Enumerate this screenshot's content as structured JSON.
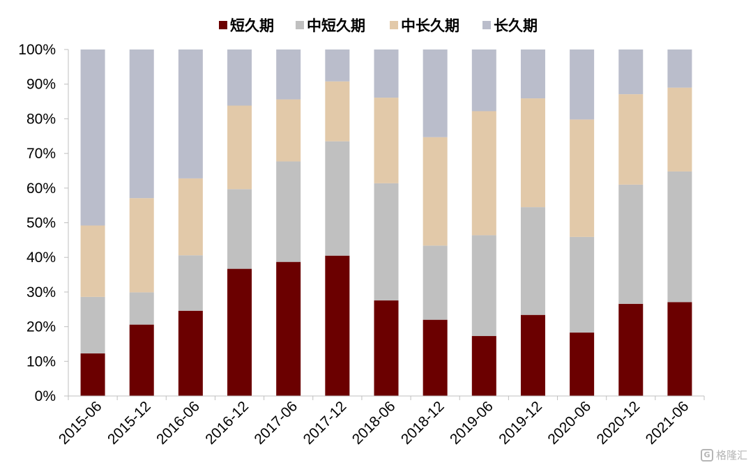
{
  "chart_data": {
    "type": "bar",
    "stacked": true,
    "percent": true,
    "categories": [
      "2015-06",
      "2015-12",
      "2016-06",
      "2016-12",
      "2017-06",
      "2017-12",
      "2018-06",
      "2018-12",
      "2019-06",
      "2019-12",
      "2020-06",
      "2020-12",
      "2021-06"
    ],
    "series": [
      {
        "name": "短久期",
        "color": "#6b0000",
        "values": [
          12.3,
          20.6,
          24.6,
          36.7,
          38.7,
          40.5,
          27.6,
          22.0,
          17.3,
          23.4,
          18.3,
          26.6,
          27.1
        ]
      },
      {
        "name": "中短久期",
        "color": "#c0c0c0",
        "values": [
          16.3,
          9.3,
          16.0,
          23.0,
          29.0,
          33.0,
          33.8,
          21.4,
          29.1,
          31.1,
          27.6,
          34.4,
          37.7
        ]
      },
      {
        "name": "中长久期",
        "color": "#e2c9a9",
        "values": [
          20.6,
          27.2,
          22.2,
          24.1,
          17.9,
          17.3,
          24.7,
          31.3,
          35.8,
          31.4,
          33.9,
          26.1,
          24.2
        ]
      },
      {
        "name": "长久期",
        "color": "#babdcb",
        "values": [
          50.8,
          42.9,
          37.2,
          16.2,
          14.4,
          9.2,
          13.9,
          25.3,
          17.8,
          14.1,
          20.2,
          12.9,
          11.0
        ]
      }
    ],
    "yticks": [
      "0%",
      "10%",
      "20%",
      "30%",
      "40%",
      "50%",
      "60%",
      "70%",
      "80%",
      "90%",
      "100%"
    ],
    "ylim": [
      0,
      100
    ],
    "grid": false,
    "legend_position": "top-center",
    "title": "",
    "xlabel": "",
    "ylabel": ""
  },
  "watermark": {
    "logo": "G",
    "text": "格隆汇"
  }
}
